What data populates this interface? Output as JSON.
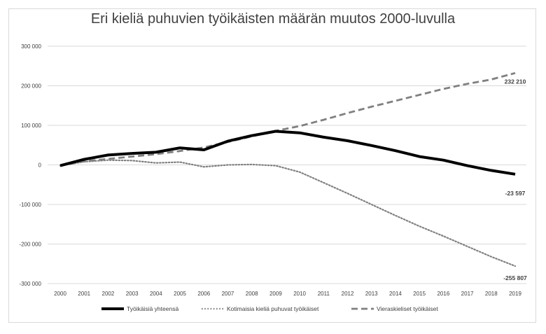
{
  "chart_data": {
    "type": "line",
    "title": "Eri kieliä puhuvien työikäisten määrän muutos 2000-luvulla",
    "xlabel": "",
    "ylabel": "",
    "x": [
      "2000",
      "2001",
      "2002",
      "2003",
      "2004",
      "2005",
      "2006",
      "2007",
      "2008",
      "2009",
      "2010",
      "2011",
      "2012",
      "2013",
      "2014",
      "2015",
      "2016",
      "2017",
      "2018",
      "2019"
    ],
    "ylim": [
      -300000,
      300000
    ],
    "yticks": [
      300000,
      200000,
      100000,
      0,
      -100000,
      -200000,
      -300000
    ],
    "ytick_labels": [
      "300 000",
      "200 000",
      "100 000",
      "0",
      "-100 000",
      "-200 000",
      "-300 000"
    ],
    "grid": true,
    "legend": "bottom",
    "series": [
      {
        "name": "Työikäisiä yhteensä",
        "style": "solid",
        "color": "#000000",
        "values": [
          -2000,
          14000,
          25000,
          29000,
          32000,
          43000,
          38000,
          60000,
          74000,
          85000,
          81000,
          70000,
          61000,
          49000,
          36000,
          21000,
          12000,
          -2000,
          -14000,
          -23597
        ],
        "end_label": "-23 597"
      },
      {
        "name": "Kotimaisia kieliä puhuvat työikäiset",
        "style": "dotted",
        "color": "#808080",
        "values": [
          -2000,
          8000,
          12000,
          11000,
          5000,
          7000,
          -5000,
          0,
          1000,
          -2000,
          -18000,
          -45000,
          -72000,
          -100000,
          -128000,
          -155000,
          -180000,
          -206000,
          -232000,
          -255807
        ],
        "end_label": "-255 807"
      },
      {
        "name": "Vieraskieliset työikäiset",
        "style": "dashed",
        "color": "#808080",
        "values": [
          -2000,
          9000,
          15000,
          21000,
          27000,
          35000,
          44000,
          58000,
          72000,
          86000,
          98000,
          114000,
          131000,
          147000,
          162000,
          177000,
          192000,
          205000,
          216000,
          232210
        ],
        "end_label": "232 210"
      }
    ]
  }
}
